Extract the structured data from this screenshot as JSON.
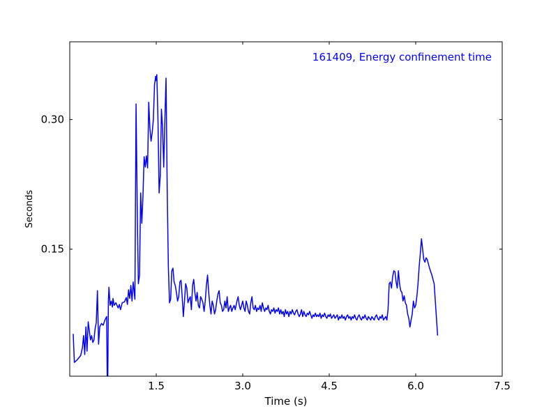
{
  "chart_data": {
    "type": "line",
    "annotation": "161409, Energy confinement time",
    "xlabel": "Time (s)",
    "ylabel": "Seconds",
    "xlim": [
      0.0,
      7.5
    ],
    "ylim": [
      0.003,
      0.39
    ],
    "xticks": [
      1.5,
      3.0,
      4.5,
      6.0,
      7.5
    ],
    "xtick_labels": [
      "1.5",
      "3.0",
      "4.5",
      "6.0",
      "7.5"
    ],
    "yticks": [
      0.15,
      0.3
    ],
    "ytick_labels": [
      "0.15",
      "0.30"
    ],
    "grid": false,
    "series": [
      {
        "color": "#0000ff",
        "points": [
          [
            0.06,
            0.052
          ],
          [
            0.08,
            0.019
          ],
          [
            0.13,
            0.022
          ],
          [
            0.19,
            0.027
          ],
          [
            0.22,
            0.036
          ],
          [
            0.24,
            0.05
          ],
          [
            0.26,
            0.028
          ],
          [
            0.28,
            0.06
          ],
          [
            0.3,
            0.032
          ],
          [
            0.32,
            0.066
          ],
          [
            0.34,
            0.055
          ],
          [
            0.36,
            0.045
          ],
          [
            0.38,
            0.05
          ],
          [
            0.4,
            0.042
          ],
          [
            0.42,
            0.045
          ],
          [
            0.44,
            0.058
          ],
          [
            0.46,
            0.065
          ],
          [
            0.48,
            0.102
          ],
          [
            0.5,
            0.04
          ],
          [
            0.52,
            0.06
          ],
          [
            0.55,
            0.064
          ],
          [
            0.58,
            0.062
          ],
          [
            0.61,
            0.068
          ],
          [
            0.64,
            0.072
          ],
          [
            0.65,
            0.0
          ],
          [
            0.66,
            0.0
          ],
          [
            0.67,
            0.09
          ],
          [
            0.68,
            0.106
          ],
          [
            0.7,
            0.085
          ],
          [
            0.72,
            0.09
          ],
          [
            0.74,
            0.083
          ],
          [
            0.75,
            0.093
          ],
          [
            0.77,
            0.085
          ],
          [
            0.8,
            0.088
          ],
          [
            0.84,
            0.082
          ],
          [
            0.86,
            0.086
          ],
          [
            0.88,
            0.08
          ],
          [
            0.91,
            0.088
          ],
          [
            0.95,
            0.089
          ],
          [
            0.98,
            0.094
          ],
          [
            1.0,
            0.086
          ],
          [
            1.02,
            0.103
          ],
          [
            1.04,
            0.093
          ],
          [
            1.06,
            0.108
          ],
          [
            1.08,
            0.09
          ],
          [
            1.1,
            0.112
          ],
          [
            1.13,
            0.092
          ],
          [
            1.15,
            0.318
          ],
          [
            1.17,
            0.2
          ],
          [
            1.19,
            0.11
          ],
          [
            1.21,
            0.12
          ],
          [
            1.23,
            0.215
          ],
          [
            1.25,
            0.18
          ],
          [
            1.27,
            0.212
          ],
          [
            1.29,
            0.257
          ],
          [
            1.31,
            0.245
          ],
          [
            1.33,
            0.258
          ],
          [
            1.35,
            0.244
          ],
          [
            1.37,
            0.32
          ],
          [
            1.39,
            0.29
          ],
          [
            1.41,
            0.275
          ],
          [
            1.43,
            0.285
          ],
          [
            1.45,
            0.3
          ],
          [
            1.47,
            0.34
          ],
          [
            1.49,
            0.35
          ],
          [
            1.5,
            0.345
          ],
          [
            1.51,
            0.352
          ],
          [
            1.53,
            0.3
          ],
          [
            1.55,
            0.215
          ],
          [
            1.57,
            0.235
          ],
          [
            1.59,
            0.312
          ],
          [
            1.61,
            0.29
          ],
          [
            1.63,
            0.245
          ],
          [
            1.65,
            0.3
          ],
          [
            1.67,
            0.348
          ],
          [
            1.69,
            0.22
          ],
          [
            1.71,
            0.13
          ],
          [
            1.73,
            0.088
          ],
          [
            1.75,
            0.092
          ],
          [
            1.77,
            0.125
          ],
          [
            1.79,
            0.128
          ],
          [
            1.81,
            0.112
          ],
          [
            1.83,
            0.108
          ],
          [
            1.85,
            0.1
          ],
          [
            1.87,
            0.09
          ],
          [
            1.89,
            0.095
          ],
          [
            1.91,
            0.112
          ],
          [
            1.93,
            0.114
          ],
          [
            1.95,
            0.095
          ],
          [
            1.97,
            0.072
          ],
          [
            1.99,
            0.09
          ],
          [
            2.01,
            0.11
          ],
          [
            2.03,
            0.105
          ],
          [
            2.05,
            0.088
          ],
          [
            2.07,
            0.092
          ],
          [
            2.09,
            0.095
          ],
          [
            2.11,
            0.08
          ],
          [
            2.13,
            0.108
          ],
          [
            2.15,
            0.115
          ],
          [
            2.17,
            0.1
          ],
          [
            2.19,
            0.09
          ],
          [
            2.21,
            0.1
          ],
          [
            2.23,
            0.085
          ],
          [
            2.25,
            0.082
          ],
          [
            2.27,
            0.095
          ],
          [
            2.29,
            0.092
          ],
          [
            2.31,
            0.088
          ],
          [
            2.33,
            0.078
          ],
          [
            2.35,
            0.09
          ],
          [
            2.37,
            0.108
          ],
          [
            2.39,
            0.12
          ],
          [
            2.41,
            0.1
          ],
          [
            2.43,
            0.085
          ],
          [
            2.45,
            0.075
          ],
          [
            2.47,
            0.09
          ],
          [
            2.49,
            0.085
          ],
          [
            2.51,
            0.075
          ],
          [
            2.53,
            0.08
          ],
          [
            2.55,
            0.09
          ],
          [
            2.57,
            0.098
          ],
          [
            2.59,
            0.102
          ],
          [
            2.61,
            0.088
          ],
          [
            2.63,
            0.085
          ],
          [
            2.65,
            0.078
          ],
          [
            2.67,
            0.08
          ],
          [
            2.69,
            0.09
          ],
          [
            2.71,
            0.082
          ],
          [
            2.73,
            0.095
          ],
          [
            2.75,
            0.078
          ],
          [
            2.77,
            0.082
          ],
          [
            2.79,
            0.085
          ],
          [
            2.81,
            0.078
          ],
          [
            2.83,
            0.082
          ],
          [
            2.85,
            0.085
          ],
          [
            2.87,
            0.08
          ],
          [
            2.9,
            0.09
          ],
          [
            2.92,
            0.095
          ],
          [
            2.94,
            0.085
          ],
          [
            2.96,
            0.08
          ],
          [
            2.98,
            0.085
          ],
          [
            3.0,
            0.09
          ],
          [
            3.02,
            0.082
          ],
          [
            3.04,
            0.078
          ],
          [
            3.06,
            0.09
          ],
          [
            3.08,
            0.085
          ],
          [
            3.1,
            0.078
          ],
          [
            3.12,
            0.075
          ],
          [
            3.14,
            0.088
          ],
          [
            3.16,
            0.095
          ],
          [
            3.18,
            0.082
          ],
          [
            3.2,
            0.08
          ],
          [
            3.22,
            0.085
          ],
          [
            3.24,
            0.078
          ],
          [
            3.26,
            0.082
          ],
          [
            3.28,
            0.08
          ],
          [
            3.3,
            0.085
          ],
          [
            3.32,
            0.078
          ],
          [
            3.34,
            0.088
          ],
          [
            3.36,
            0.082
          ],
          [
            3.38,
            0.078
          ],
          [
            3.4,
            0.082
          ],
          [
            3.42,
            0.08
          ],
          [
            3.44,
            0.085
          ],
          [
            3.46,
            0.078
          ],
          [
            3.48,
            0.075
          ],
          [
            3.5,
            0.08
          ],
          [
            3.52,
            0.078
          ],
          [
            3.54,
            0.082
          ],
          [
            3.56,
            0.076
          ],
          [
            3.58,
            0.08
          ],
          [
            3.6,
            0.078
          ],
          [
            3.62,
            0.082
          ],
          [
            3.64,
            0.075
          ],
          [
            3.66,
            0.08
          ],
          [
            3.68,
            0.075
          ],
          [
            3.7,
            0.078
          ],
          [
            3.72,
            0.072
          ],
          [
            3.74,
            0.08
          ],
          [
            3.76,
            0.075
          ],
          [
            3.78,
            0.078
          ],
          [
            3.8,
            0.072
          ],
          [
            3.82,
            0.078
          ],
          [
            3.84,
            0.075
          ],
          [
            3.86,
            0.08
          ],
          [
            3.88,
            0.076
          ],
          [
            3.9,
            0.074
          ],
          [
            3.92,
            0.078
          ],
          [
            3.94,
            0.08
          ],
          [
            3.96,
            0.075
          ],
          [
            3.98,
            0.072
          ],
          [
            4.0,
            0.075
          ],
          [
            4.02,
            0.08
          ],
          [
            4.04,
            0.072
          ],
          [
            4.06,
            0.078
          ],
          [
            4.08,
            0.074
          ],
          [
            4.1,
            0.072
          ],
          [
            4.12,
            0.076
          ],
          [
            4.14,
            0.074
          ],
          [
            4.16,
            0.078
          ],
          [
            4.18,
            0.074
          ],
          [
            4.2,
            0.07
          ],
          [
            4.22,
            0.074
          ],
          [
            4.24,
            0.072
          ],
          [
            4.26,
            0.076
          ],
          [
            4.28,
            0.072
          ],
          [
            4.3,
            0.074
          ],
          [
            4.32,
            0.072
          ],
          [
            4.34,
            0.076
          ],
          [
            4.36,
            0.07
          ],
          [
            4.38,
            0.074
          ],
          [
            4.4,
            0.072
          ],
          [
            4.42,
            0.076
          ],
          [
            4.44,
            0.072
          ],
          [
            4.46,
            0.07
          ],
          [
            4.48,
            0.074
          ],
          [
            4.5,
            0.072
          ],
          [
            4.52,
            0.075
          ],
          [
            4.54,
            0.07
          ],
          [
            4.56,
            0.072
          ],
          [
            4.58,
            0.074
          ],
          [
            4.6,
            0.07
          ],
          [
            4.62,
            0.072
          ],
          [
            4.64,
            0.074
          ],
          [
            4.66,
            0.068
          ],
          [
            4.68,
            0.072
          ],
          [
            4.7,
            0.07
          ],
          [
            4.72,
            0.074
          ],
          [
            4.74,
            0.07
          ],
          [
            4.76,
            0.072
          ],
          [
            4.78,
            0.068
          ],
          [
            4.8,
            0.072
          ],
          [
            4.82,
            0.074
          ],
          [
            4.84,
            0.07
          ],
          [
            4.86,
            0.072
          ],
          [
            4.88,
            0.068
          ],
          [
            4.9,
            0.072
          ],
          [
            4.92,
            0.07
          ],
          [
            4.94,
            0.074
          ],
          [
            4.96,
            0.07
          ],
          [
            4.98,
            0.068
          ],
          [
            5.0,
            0.072
          ],
          [
            5.02,
            0.074
          ],
          [
            5.04,
            0.07
          ],
          [
            5.06,
            0.068
          ],
          [
            5.08,
            0.072
          ],
          [
            5.1,
            0.07
          ],
          [
            5.12,
            0.074
          ],
          [
            5.14,
            0.07
          ],
          [
            5.16,
            0.068
          ],
          [
            5.18,
            0.072
          ],
          [
            5.2,
            0.07
          ],
          [
            5.22,
            0.068
          ],
          [
            5.24,
            0.072
          ],
          [
            5.26,
            0.07
          ],
          [
            5.28,
            0.068
          ],
          [
            5.3,
            0.072
          ],
          [
            5.32,
            0.074
          ],
          [
            5.34,
            0.07
          ],
          [
            5.36,
            0.068
          ],
          [
            5.38,
            0.072
          ],
          [
            5.4,
            0.07
          ],
          [
            5.42,
            0.074
          ],
          [
            5.44,
            0.068
          ],
          [
            5.46,
            0.07
          ],
          [
            5.48,
            0.072
          ],
          [
            5.5,
            0.068
          ],
          [
            5.52,
            0.08
          ],
          [
            5.54,
            0.11
          ],
          [
            5.56,
            0.112
          ],
          [
            5.58,
            0.105
          ],
          [
            5.6,
            0.118
          ],
          [
            5.62,
            0.125
          ],
          [
            5.64,
            0.124
          ],
          [
            5.66,
            0.112
          ],
          [
            5.68,
            0.105
          ],
          [
            5.7,
            0.125
          ],
          [
            5.72,
            0.11
          ],
          [
            5.74,
            0.102
          ],
          [
            5.76,
            0.1
          ],
          [
            5.78,
            0.09
          ],
          [
            5.8,
            0.096
          ],
          [
            5.82,
            0.088
          ],
          [
            5.84,
            0.085
          ],
          [
            5.86,
            0.075
          ],
          [
            5.88,
            0.07
          ],
          [
            5.9,
            0.06
          ],
          [
            5.92,
            0.068
          ],
          [
            5.94,
            0.075
          ],
          [
            5.96,
            0.09
          ],
          [
            5.98,
            0.082
          ],
          [
            6.0,
            0.085
          ],
          [
            6.02,
            0.095
          ],
          [
            6.04,
            0.11
          ],
          [
            6.06,
            0.13
          ],
          [
            6.08,
            0.145
          ],
          [
            6.1,
            0.162
          ],
          [
            6.12,
            0.15
          ],
          [
            6.14,
            0.138
          ],
          [
            6.16,
            0.135
          ],
          [
            6.18,
            0.14
          ],
          [
            6.2,
            0.138
          ],
          [
            6.24,
            0.128
          ],
          [
            6.28,
            0.12
          ],
          [
            6.32,
            0.11
          ],
          [
            6.36,
            0.07
          ],
          [
            6.38,
            0.05
          ]
        ]
      }
    ]
  }
}
